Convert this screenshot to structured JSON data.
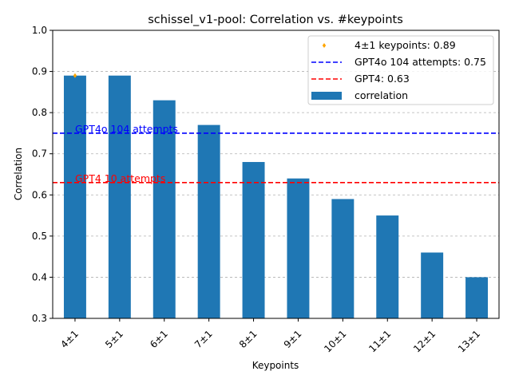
{
  "chart_data": {
    "type": "bar",
    "title": "schissel_v1-pool: Correlation vs. #keypoints",
    "xlabel": "Keypoints",
    "ylabel": "Correlation",
    "ylim": [
      0.3,
      1.0
    ],
    "yticks": [
      "0.3",
      "0.4",
      "0.5",
      "0.6",
      "0.7",
      "0.8",
      "0.9",
      "1.0"
    ],
    "grid": "horizontal-dashed",
    "legend_position": "top-right",
    "categories": [
      "4±1",
      "5±1",
      "6±1",
      "7±1",
      "8±1",
      "9±1",
      "10±1",
      "11±1",
      "12±1",
      "13±1"
    ],
    "series": [
      {
        "name": "correlation",
        "values": [
          0.89,
          0.89,
          0.83,
          0.77,
          0.68,
          0.64,
          0.59,
          0.55,
          0.46,
          0.4
        ],
        "color": "#1f77b4"
      }
    ],
    "highlight_point": {
      "category": "4±1",
      "value": 0.89,
      "legend_label": "4±1 keypoints: 0.89",
      "color": "#ffa500"
    },
    "reference_lines": [
      {
        "value": 0.75,
        "legend_label": "GPT4o 104 attempts: 0.75",
        "annotation": "GPT4o 104 attempts",
        "color": "#0000ff"
      },
      {
        "value": 0.63,
        "legend_label": "GPT4: 0.63",
        "annotation": "GPT4 10 attempts",
        "color": "#ff0000"
      }
    ]
  }
}
